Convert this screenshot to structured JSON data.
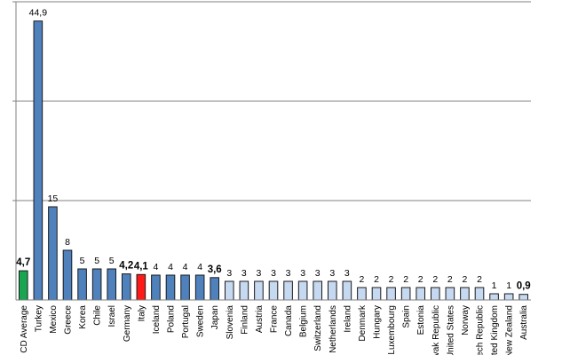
{
  "chart_data": {
    "type": "bar",
    "title": "",
    "xlabel": "",
    "ylabel": "",
    "ylim": [
      0,
      48
    ],
    "grid": true,
    "categories": [
      "CD Average",
      "Turkey",
      "Mexico",
      "Greece",
      "Korea",
      "Chile",
      "Israel",
      "Germany",
      "Italy",
      "Iceland",
      "Poland",
      "Portugal",
      "Sweden",
      "Japan",
      "Slovenia",
      "Finland",
      "Austria",
      "France",
      "Canada",
      "Belgium",
      "Switzerland",
      "Netherlands",
      "Ireland",
      "Denmark",
      "Hungary",
      "Luxembourg",
      "Spain",
      "Estonia",
      "Slovak Republic",
      "United States",
      "Norway",
      "Czech Republic",
      "United Kingdom",
      "New Zealand",
      "Australia"
    ],
    "values": [
      4.7,
      44.9,
      15,
      8,
      5,
      5,
      5,
      4.2,
      4.1,
      4,
      4,
      4,
      4,
      3.6,
      3,
      3,
      3,
      3,
      3,
      3,
      3,
      3,
      3,
      2,
      2,
      2,
      2,
      2,
      2,
      2,
      2,
      2,
      1,
      1,
      0.9
    ],
    "value_labels": [
      "4,7",
      "44,9",
      "15",
      "8",
      "5",
      "5",
      "5",
      "4,2",
      "4,1",
      "4",
      "4",
      "4",
      "4",
      "3,6",
      "3",
      "3",
      "3",
      "3",
      "3",
      "3",
      "3",
      "3",
      "3",
      "2",
      "2",
      "2",
      "2",
      "2",
      "2",
      "2",
      "2",
      "2",
      "1",
      "1",
      "0,9"
    ],
    "bold_labels": [
      true,
      false,
      false,
      false,
      false,
      false,
      false,
      true,
      true,
      false,
      false,
      false,
      false,
      true,
      false,
      false,
      false,
      false,
      false,
      false,
      false,
      false,
      false,
      false,
      false,
      false,
      false,
      false,
      false,
      false,
      false,
      false,
      false,
      false,
      true
    ],
    "bar_colors": [
      "#1aa650",
      "#4f81bd",
      "#4f81bd",
      "#4f81bd",
      "#4f81bd",
      "#4f81bd",
      "#4f81bd",
      "#4f81bd",
      "#ff1a1a",
      "#4f81bd",
      "#4f81bd",
      "#4f81bd",
      "#4f81bd",
      "#4f81bd",
      "#c6d9f1",
      "#c6d9f1",
      "#c6d9f1",
      "#c6d9f1",
      "#c6d9f1",
      "#c6d9f1",
      "#c6d9f1",
      "#c6d9f1",
      "#c6d9f1",
      "#c6d9f1",
      "#c6d9f1",
      "#c6d9f1",
      "#c6d9f1",
      "#c6d9f1",
      "#c6d9f1",
      "#c6d9f1",
      "#c6d9f1",
      "#c6d9f1",
      "#c6d9f1",
      "#c6d9f1",
      "#c6d9f1"
    ],
    "gridline_values": [
      16,
      32,
      48
    ],
    "colors": {
      "grid": "#808080",
      "bar_outline": "#1a1a1a",
      "text": "#000000"
    }
  }
}
